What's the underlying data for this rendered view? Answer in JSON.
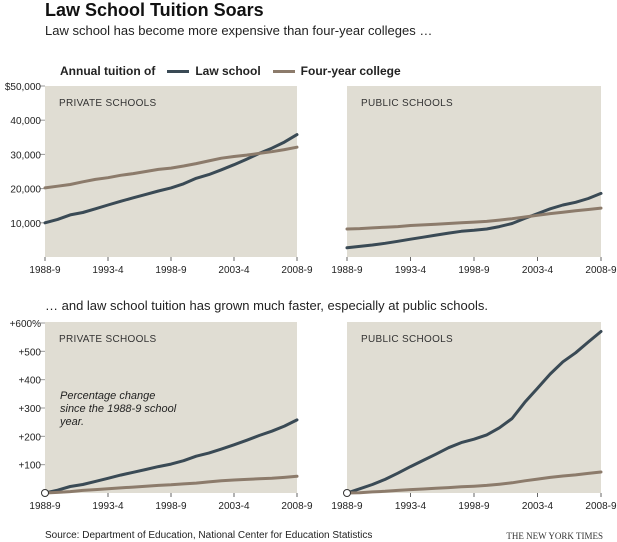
{
  "title": "Law School Tuition Soars",
  "subtitle_top": "Law school has become more expensive than four-year colleges …",
  "subtitle_bottom": "… and law school tuition has grown much faster, especially at public schools.",
  "legend": {
    "prefix": "Annual tuition of",
    "law": "Law school",
    "college": "Four-year college"
  },
  "source": "Source: Department of Education, National Center for Education Statistics",
  "credit": "THE NEW YORK TIMES",
  "colors": {
    "law": "#3a4a55",
    "college": "#8c7b6b",
    "panel": "#e0ddd3"
  },
  "chart_data": [
    {
      "type": "line",
      "panel": "PRIVATE SCHOOLS",
      "x_ticks": [
        "1988-9",
        "1993-4",
        "1998-9",
        "2003-4",
        "2008-9"
      ],
      "y_ticks": [
        "$50,000",
        "40,000",
        "30,000",
        "20,000",
        "10,000"
      ],
      "ylim": [
        0,
        50000
      ],
      "series": [
        {
          "name": "Law school",
          "values": [
            10000,
            11000,
            12300,
            13000,
            14100,
            15200,
            16300,
            17300,
            18300,
            19300,
            20200,
            21400,
            23000,
            24100,
            25500,
            27000,
            28600,
            30300,
            31800,
            33600,
            35800
          ]
        },
        {
          "name": "Four-year college",
          "values": [
            20200,
            20700,
            21200,
            22000,
            22700,
            23200,
            23900,
            24400,
            25000,
            25600,
            26000,
            26600,
            27300,
            28100,
            28900,
            29400,
            29800,
            30300,
            30800,
            31400,
            32100
          ]
        }
      ]
    },
    {
      "type": "line",
      "panel": "PUBLIC SCHOOLS",
      "x_ticks": [
        "1988-9",
        "1993-4",
        "1998-9",
        "2003-4",
        "2008-9"
      ],
      "ylim": [
        0,
        50000
      ],
      "series": [
        {
          "name": "Law school",
          "values": [
            2700,
            3100,
            3500,
            4000,
            4600,
            5200,
            5800,
            6400,
            7000,
            7500,
            7800,
            8200,
            8900,
            9800,
            11300,
            12700,
            14100,
            15200,
            16000,
            17100,
            18600
          ]
        },
        {
          "name": "Four-year college",
          "values": [
            8200,
            8300,
            8500,
            8700,
            8900,
            9200,
            9400,
            9600,
            9800,
            10000,
            10200,
            10400,
            10800,
            11200,
            11700,
            12200,
            12700,
            13100,
            13500,
            13900,
            14300
          ]
        }
      ]
    },
    {
      "type": "line",
      "panel": "PRIVATE SCHOOLS",
      "annotation": "Percentage change since the 1988-9 school year.",
      "x_ticks": [
        "1988-9",
        "1993-4",
        "1998-9",
        "2003-4",
        "2008-9"
      ],
      "y_ticks": [
        "+600%",
        "+500",
        "+400",
        "+300",
        "+200",
        "+100"
      ],
      "ylim": [
        0,
        600
      ],
      "series": [
        {
          "name": "Law school",
          "values": [
            0,
            10,
            23,
            30,
            41,
            52,
            63,
            73,
            83,
            93,
            102,
            114,
            130,
            141,
            155,
            170,
            186,
            203,
            218,
            236,
            258
          ]
        },
        {
          "name": "Four-year college",
          "values": [
            0,
            2,
            5,
            9,
            12,
            15,
            18,
            21,
            24,
            27,
            29,
            32,
            35,
            39,
            43,
            46,
            48,
            50,
            52,
            55,
            59
          ]
        }
      ]
    },
    {
      "type": "line",
      "panel": "PUBLIC SCHOOLS",
      "x_ticks": [
        "1988-9",
        "1993-4",
        "1998-9",
        "2003-4",
        "2008-9"
      ],
      "ylim": [
        0,
        600
      ],
      "series": [
        {
          "name": "Law school",
          "values": [
            0,
            15,
            30,
            48,
            70,
            93,
            115,
            137,
            160,
            178,
            190,
            205,
            230,
            263,
            320,
            370,
            420,
            463,
            495,
            533,
            570
          ]
        },
        {
          "name": "Four-year college",
          "values": [
            0,
            1,
            4,
            6,
            9,
            12,
            14,
            17,
            19,
            22,
            24,
            27,
            31,
            36,
            43,
            49,
            55,
            60,
            64,
            69,
            74
          ]
        }
      ]
    }
  ]
}
